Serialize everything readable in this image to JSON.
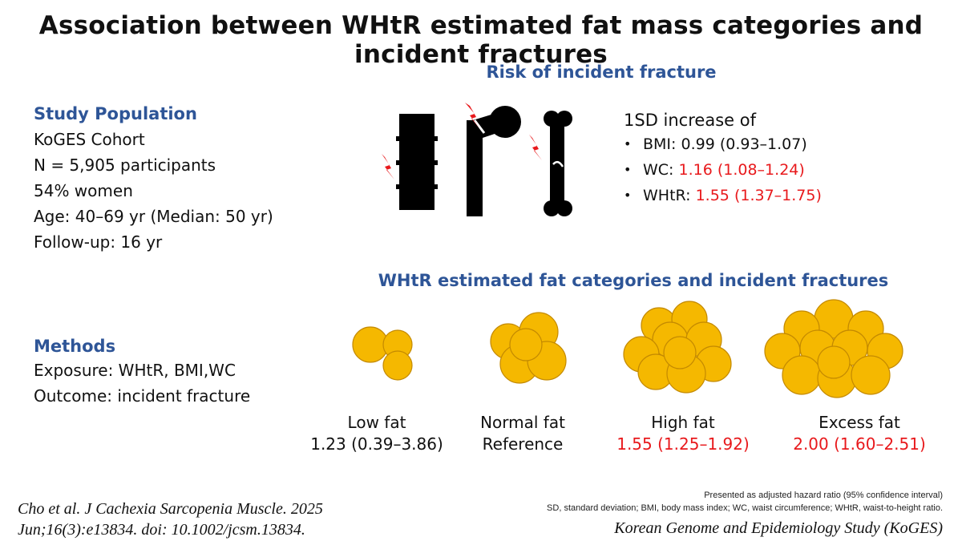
{
  "title": "Association between WHtR estimated fat mass categories and incident fractures",
  "study_population": {
    "heading": "Study Population",
    "lines": [
      "KoGES Cohort",
      "N = 5,905 participants",
      "54% women",
      "Age: 40–69 yr (Median: 50 yr)",
      "Follow-up: 16 yr"
    ]
  },
  "methods": {
    "heading": "Methods",
    "lines": [
      "Exposure: WHtR, BMI,WC",
      "Outcome: incident fracture"
    ]
  },
  "risk": {
    "heading": "Risk of incident fracture",
    "intro": "1SD increase of",
    "items": [
      {
        "label": "BMI: ",
        "value": "0.99 (0.93–1.07)",
        "highlight": false
      },
      {
        "label": "WC: ",
        "value": "1.16 (1.08–1.24)",
        "highlight": true
      },
      {
        "label": "WHtR: ",
        "value": "1.55 (1.37–1.75)",
        "highlight": true
      }
    ]
  },
  "categories": {
    "heading": "WHtR estimated fat categories and incident fractures",
    "items": [
      {
        "name": "Low fat",
        "value": "1.23 (0.39–3.86)",
        "highlight": false
      },
      {
        "name": "Normal fat",
        "value": "Reference",
        "highlight": false
      },
      {
        "name": "High fat",
        "value": "1.55 (1.25–1.92)",
        "highlight": true
      },
      {
        "name": "Excess fat",
        "value": "2.00 (1.60–2.51)",
        "highlight": true
      }
    ]
  },
  "notes": {
    "line1": "Presented as adjusted  hazard ratio (95% confidence interval)",
    "line2": "SD, standard deviation; BMI, body mass index; WC, waist circumference; WHtR, waist-to-height ratio."
  },
  "citation": {
    "line1": "Cho et al. J Cachexia Sarcopenia Muscle. 2025",
    "line2": "Jun;16(3):e13834. doi: 10.1002/jcsm.13834."
  },
  "source": "Korean Genome and Epidemiology Study (KoGES)",
  "colors": {
    "accent_blue": "#2e5597",
    "highlight_red": "#e8191c",
    "fat_fill": "#f5b800",
    "fat_stroke": "#c48a00"
  }
}
